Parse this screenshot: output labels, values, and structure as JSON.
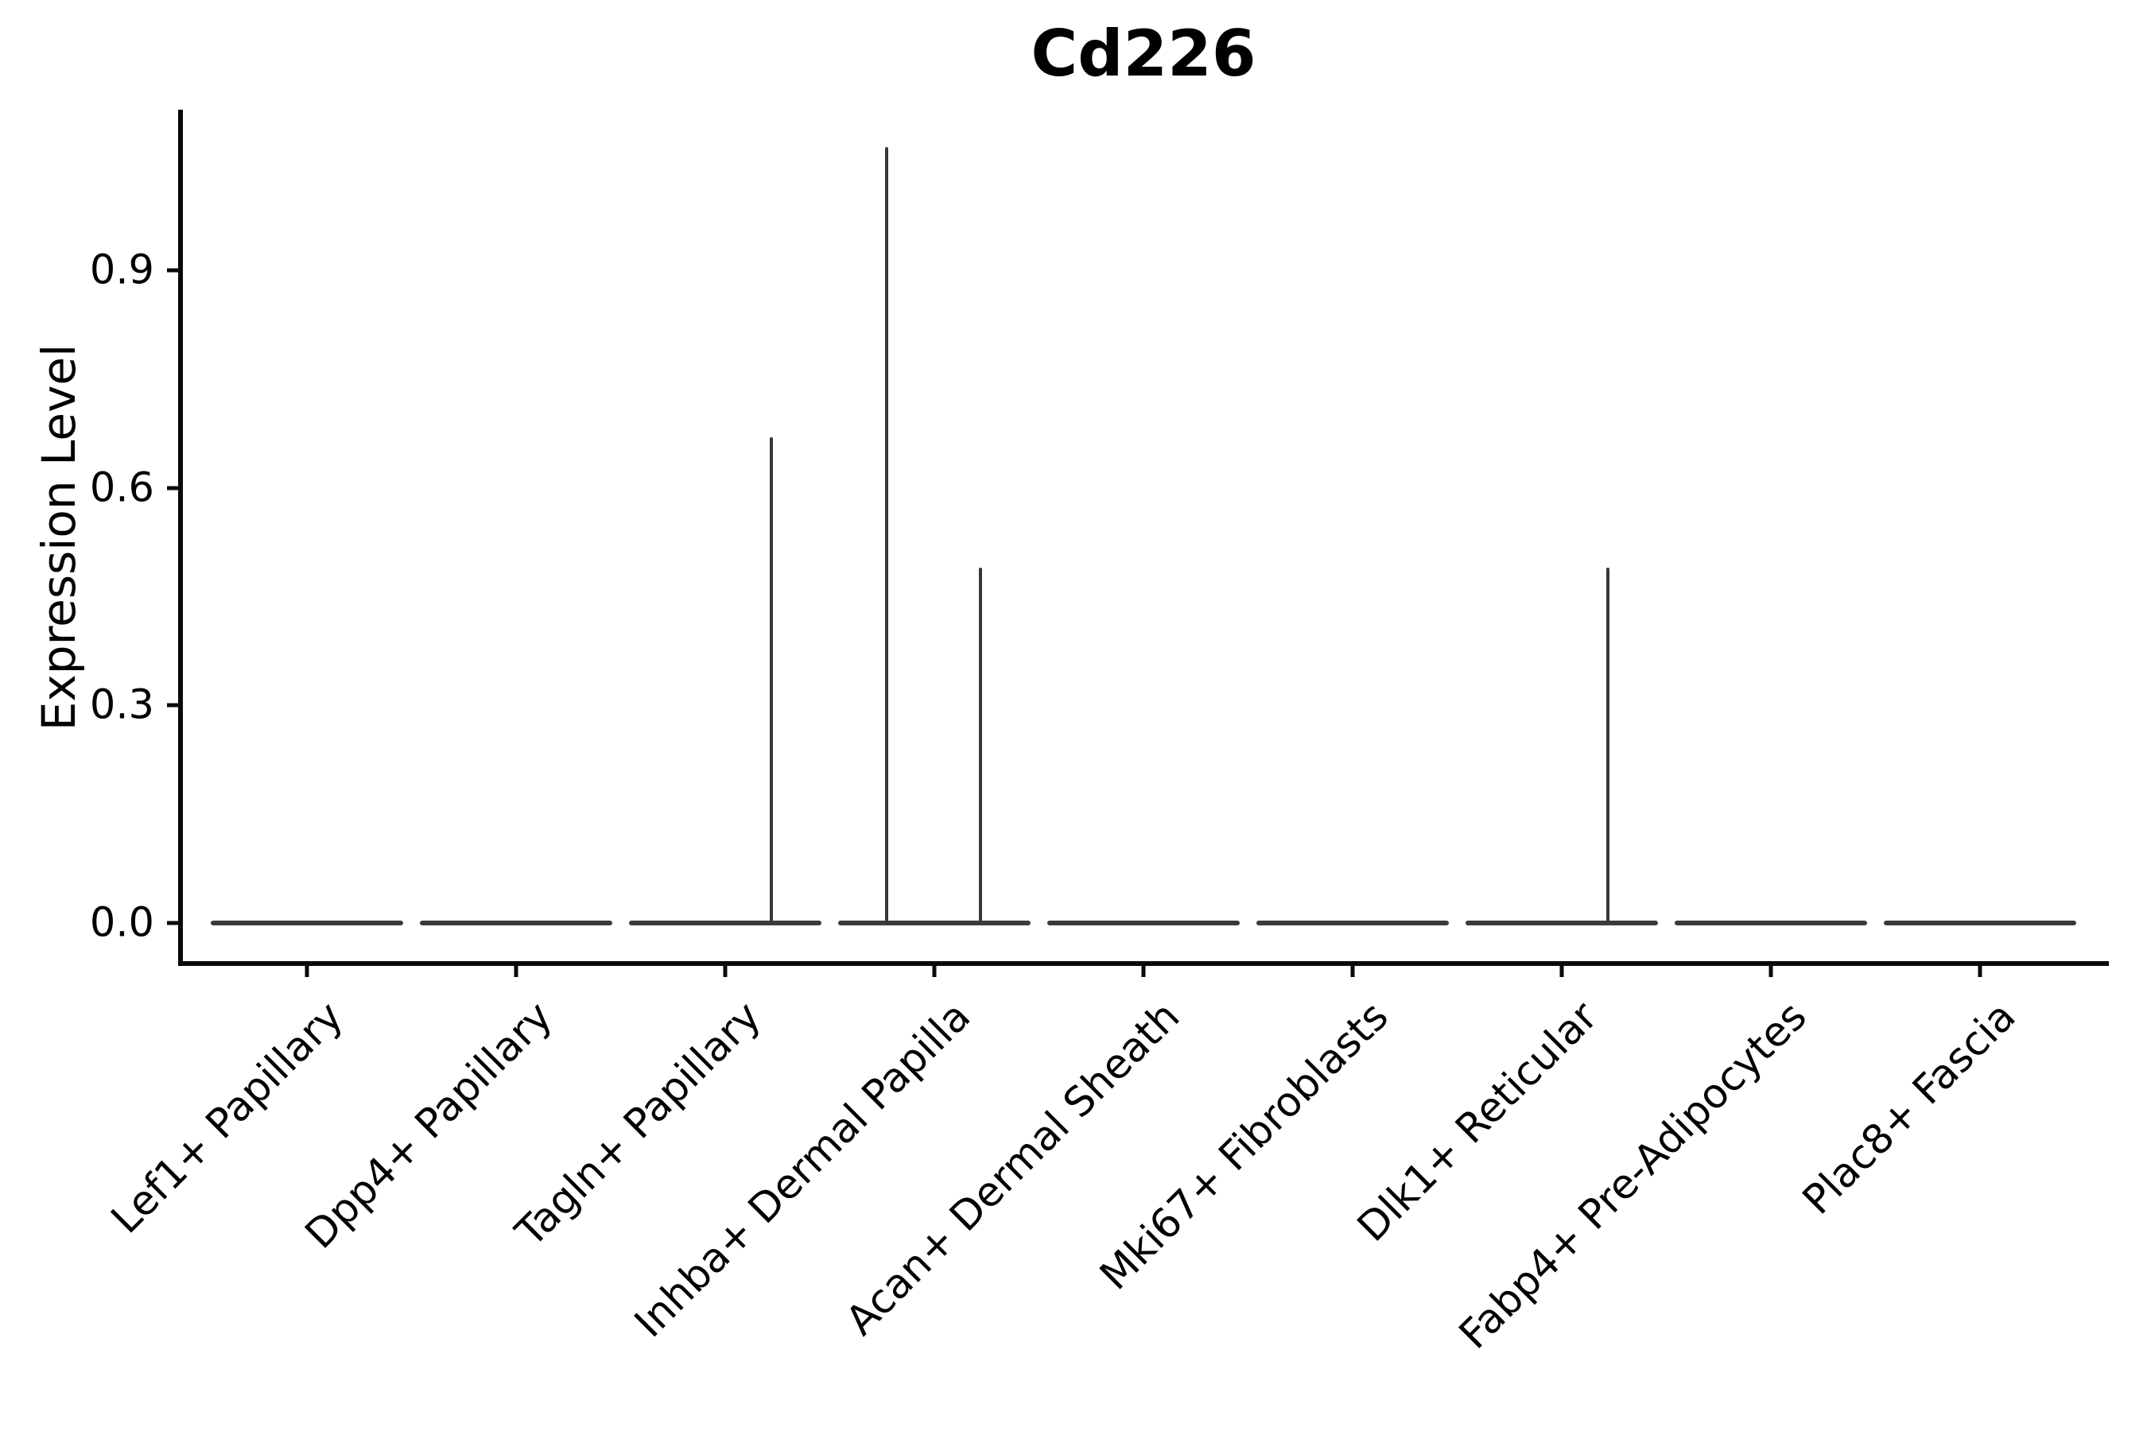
{
  "figure": {
    "title": "Cd226",
    "ylabel": "Expression Level"
  },
  "colors": {
    "background": "#ffffff",
    "text": "#000000",
    "axis_spine": "#0a0a0a",
    "violin_line": "#3a3a3a"
  },
  "chart_data": {
    "type": "violin",
    "title": "Cd226",
    "xlabel": "",
    "ylabel": "Expression Level",
    "categories": [
      "Lef1+ Papillary",
      "Dpp4+ Papillary",
      "Tagln+ Papillary",
      "Inhba+ Dermal Papilla",
      "Acan+ Dermal Sheath",
      "Mki67+ Fibroblasts",
      "Dlk1+ Reticular",
      "Fabp4+ Pre-Adipocytes",
      "Plac8+ Fascia"
    ],
    "y_ticks": [
      0.0,
      0.3,
      0.6,
      0.9
    ],
    "y_tick_labels": [
      "0.0",
      "0.3",
      "0.6",
      "0.9"
    ],
    "ylim": [
      -0.055,
      1.12
    ],
    "grid": false,
    "legend": false,
    "x_tick_rotation_deg": 45,
    "series": [
      {
        "name": "Lef1+ Papillary",
        "baseline": 0.0,
        "max_expression": 0.0,
        "spikes": []
      },
      {
        "name": "Dpp4+ Papillary",
        "baseline": 0.0,
        "max_expression": 0.0,
        "spikes": []
      },
      {
        "name": "Tagln+ Papillary",
        "baseline": 0.0,
        "max_expression": 0.67,
        "spikes": [
          {
            "value": 0.67,
            "offset_frac": 0.22
          }
        ]
      },
      {
        "name": "Inhba+ Dermal Papilla",
        "baseline": 0.0,
        "max_expression": 1.07,
        "spikes": [
          {
            "value": 1.07,
            "offset_frac": -0.23
          },
          {
            "value": 0.49,
            "offset_frac": 0.22
          }
        ]
      },
      {
        "name": "Acan+ Dermal Sheath",
        "baseline": 0.0,
        "max_expression": 0.0,
        "spikes": []
      },
      {
        "name": "Mki67+ Fibroblasts",
        "baseline": 0.0,
        "max_expression": 0.0,
        "spikes": []
      },
      {
        "name": "Dlk1+ Reticular",
        "baseline": 0.0,
        "max_expression": 0.49,
        "spikes": [
          {
            "value": 0.49,
            "offset_frac": 0.22
          }
        ]
      },
      {
        "name": "Fabp4+ Pre-Adipocytes",
        "baseline": 0.0,
        "max_expression": 0.0,
        "spikes": []
      },
      {
        "name": "Plac8+ Fascia",
        "baseline": 0.0,
        "max_expression": 0.0,
        "spikes": []
      }
    ]
  }
}
